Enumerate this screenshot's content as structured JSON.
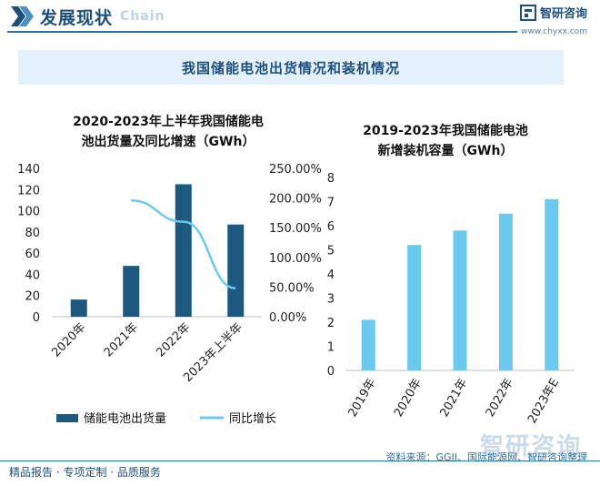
{
  "header": {
    "title": "发展现状",
    "title_deco": "Chain",
    "brand_name": "智研咨询",
    "brand_url": "www.chyxx.com"
  },
  "banner": {
    "text": "我国储能电池出货情况和装机情况"
  },
  "chart_data": [
    {
      "type": "bar",
      "title_line1": "2020-2023年上半年我国储能电",
      "title_line2": "池出货量及同比增速（GWh）",
      "categories": [
        "2020年",
        "2021年",
        "2022年",
        "2023年上半年"
      ],
      "series": [
        {
          "name": "储能电池出货量",
          "type": "bar",
          "values": [
            16.2,
            48,
            125,
            87
          ],
          "color": "#1b5a7e"
        },
        {
          "name": "同比增长",
          "type": "line",
          "axis": "right",
          "values": [
            null,
            1.96,
            1.6,
            0.48
          ],
          "color": "#6bc9ef"
        }
      ],
      "ylim": [
        0,
        140
      ],
      "yticks": [
        "0",
        "20",
        "40",
        "60",
        "80",
        "100",
        "120",
        "140"
      ],
      "y2lim": [
        0,
        2.5
      ],
      "y2ticks": [
        "0.00%",
        "50.00%",
        "100.00%",
        "150.00%",
        "200.00%",
        "250.00%"
      ],
      "legend_placement": "bottom"
    },
    {
      "type": "bar",
      "title_line1": "2019-2023年我国储能电池",
      "title_line2": "新增装机容量（GWh）",
      "categories": [
        "2019年",
        "2020年",
        "2021年",
        "2022年",
        "2023年E"
      ],
      "values": [
        2.1,
        5.2,
        5.8,
        6.5,
        7.1
      ],
      "color": "#6bc9ef",
      "ylim": [
        0,
        8
      ],
      "yticks": [
        "0",
        "1",
        "2",
        "3",
        "4",
        "5",
        "6",
        "7",
        "8"
      ]
    }
  ],
  "footer": {
    "left_text": "精品报告 · 专项定制 · 品质服务",
    "source": "资料来源：GGII、国际能源网、智研咨询整理",
    "watermark_brand": "智研咨询"
  },
  "colors": {
    "primary": "#1c4f7c",
    "dark_bar": "#1b5a7e",
    "light_bar": "#6bc9ef",
    "banner_bg": "#e4f0fb"
  },
  "icons": [
    "double-chevron-icon",
    "logo-icon"
  ]
}
